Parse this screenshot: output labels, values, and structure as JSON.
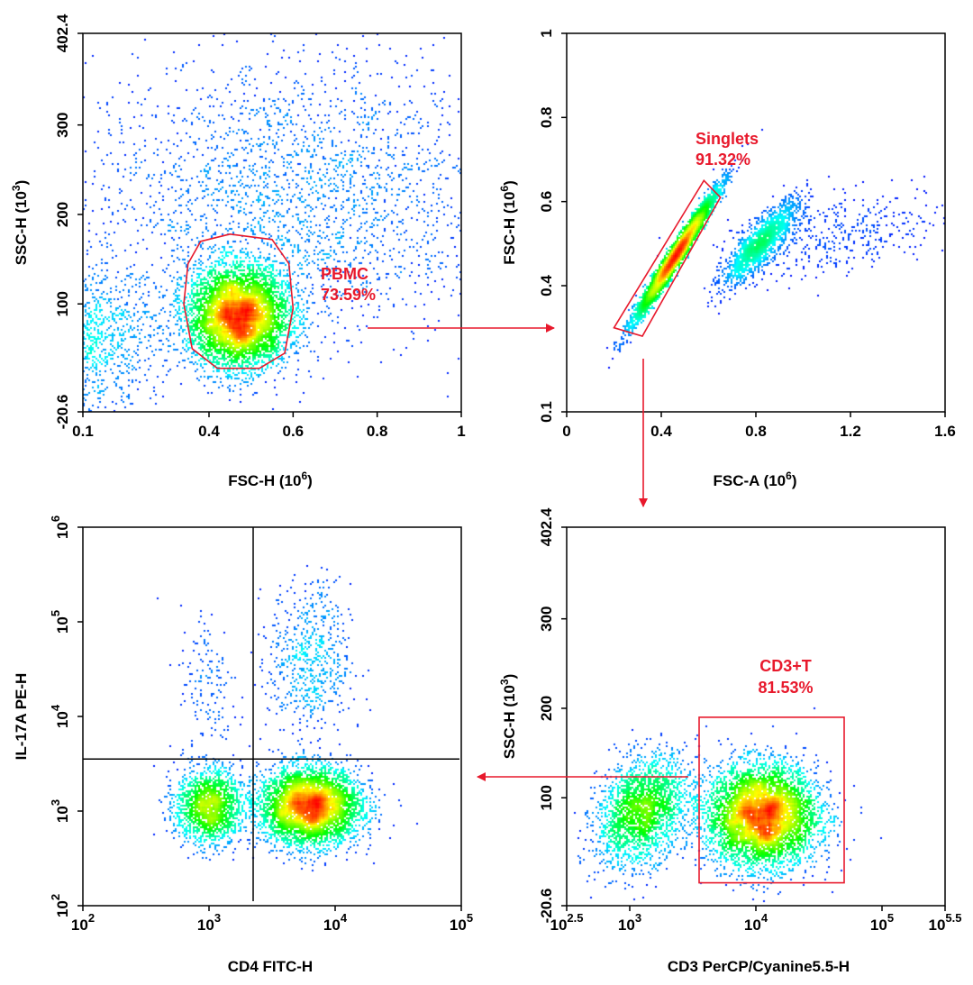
{
  "figure_title": "",
  "colors": {
    "gate": "#e8192c",
    "axis": "#000000",
    "density_low": "#0000ff",
    "density_mid": "#00e070",
    "density_high": "#ff2000"
  },
  "chart_data": [
    {
      "id": "pbmc",
      "type": "scatter",
      "subtype": "flow-cytometry-density",
      "title": "",
      "xlabel": "FSC-H",
      "xlabel_exp": "6",
      "ylabel": "SSC-H",
      "ylabel_exp": "3",
      "xlim": [
        0.1,
        1.0
      ],
      "ylim": [
        -20.6,
        402.4
      ],
      "x_ticks": [
        {
          "value": 0.1,
          "label": "0.1"
        },
        {
          "value": 0.4,
          "label": "0.4"
        },
        {
          "value": 0.6,
          "label": "0.6"
        },
        {
          "value": 0.8,
          "label": "0.8"
        },
        {
          "value": 1.0,
          "label": "1"
        }
      ],
      "y_ticks": [
        {
          "value": -20.6,
          "label": "-20.6"
        },
        {
          "value": 100,
          "label": "100"
        },
        {
          "value": 200,
          "label": "200"
        },
        {
          "value": 300,
          "label": "300"
        },
        {
          "value": 402.4,
          "label": "402.4"
        }
      ],
      "populations": [
        {
          "cx": 0.47,
          "cy": 85,
          "sx": 0.06,
          "sy": 28,
          "n": 5500,
          "rho": 0
        },
        {
          "cx": 0.08,
          "cy": 60,
          "sx": 0.1,
          "sy": 40,
          "n": 1500,
          "rho": 0
        },
        {
          "cx": 0.6,
          "cy": 220,
          "sx": 0.25,
          "sy": 80,
          "n": 2500,
          "rho": 0
        }
      ],
      "gate": {
        "name": "PBMC",
        "percent": "73.59%",
        "shape": "polygon",
        "points": [
          [
            0.38,
            170
          ],
          [
            0.45,
            178
          ],
          [
            0.55,
            172
          ],
          [
            0.59,
            145
          ],
          [
            0.6,
            95
          ],
          [
            0.58,
            45
          ],
          [
            0.52,
            28
          ],
          [
            0.42,
            28
          ],
          [
            0.36,
            50
          ],
          [
            0.34,
            100
          ],
          [
            0.35,
            145
          ]
        ]
      }
    },
    {
      "id": "singlets",
      "type": "scatter",
      "subtype": "flow-cytometry-density",
      "title": "",
      "xlabel": "FSC-A",
      "xlabel_exp": "6",
      "ylabel": "FSC-H",
      "ylabel_exp": "6",
      "xlim": [
        0,
        1.6
      ],
      "ylim": [
        0.1,
        1.0
      ],
      "x_ticks": [
        {
          "value": 0,
          "label": "0"
        },
        {
          "value": 0.4,
          "label": "0.4"
        },
        {
          "value": 0.8,
          "label": "0.8"
        },
        {
          "value": 1.2,
          "label": "1.2"
        },
        {
          "value": 1.6,
          "label": "1.6"
        }
      ],
      "y_ticks": [
        {
          "value": 0.1,
          "label": "0.1"
        },
        {
          "value": 0.4,
          "label": "0.4"
        },
        {
          "value": 0.6,
          "label": "0.6"
        },
        {
          "value": 0.8,
          "label": "0.8"
        },
        {
          "value": 1.0,
          "label": "1"
        }
      ],
      "populations": [
        {
          "cx": 0.46,
          "cy": 0.47,
          "sx": 0.085,
          "sy": 0.075,
          "n": 6000,
          "rho": 0.98
        },
        {
          "cx": 0.82,
          "cy": 0.5,
          "sx": 0.08,
          "sy": 0.05,
          "n": 1600,
          "rho": 0.85
        },
        {
          "cx": 1.15,
          "cy": 0.52,
          "sx": 0.25,
          "sy": 0.05,
          "n": 450,
          "rho": 0.4
        }
      ],
      "gate": {
        "name": "Singlets",
        "percent": "91.32%",
        "shape": "polygon",
        "points": [
          [
            0.2,
            0.3
          ],
          [
            0.32,
            0.28
          ],
          [
            0.65,
            0.61
          ],
          [
            0.58,
            0.65
          ]
        ]
      }
    },
    {
      "id": "cd3",
      "type": "scatter",
      "subtype": "flow-cytometry-density",
      "title": "",
      "xlabel": "CD3 PerCP/Cyanine5.5-H",
      "ylabel": "SSC-H",
      "ylabel_exp": "3",
      "xscale": "log10",
      "xlim": [
        2.5,
        5.5
      ],
      "ylim": [
        -20.6,
        402.4
      ],
      "x_ticks": [
        {
          "value": 2.5,
          "base": "10",
          "exp": "2.5"
        },
        {
          "value": 3,
          "base": "10",
          "exp": "3"
        },
        {
          "value": 4,
          "base": "10",
          "exp": "4"
        },
        {
          "value": 5,
          "base": "10",
          "exp": "5"
        },
        {
          "value": 5.5,
          "base": "10",
          "exp": "5.5"
        }
      ],
      "y_ticks": [
        {
          "value": -20.6,
          "label": "-20.6"
        },
        {
          "value": 100,
          "label": "100"
        },
        {
          "value": 200,
          "label": "200"
        },
        {
          "value": 300,
          "label": "300"
        },
        {
          "value": 402.4,
          "label": "402.4"
        }
      ],
      "populations": [
        {
          "cx": 4.05,
          "cy": 80,
          "sx": 0.22,
          "sy": 28,
          "n": 6000,
          "rho": 0
        },
        {
          "cx": 3.1,
          "cy": 85,
          "sx": 0.18,
          "sy": 30,
          "n": 2200,
          "rho": 0.3
        }
      ],
      "gate": {
        "name": "CD3+T",
        "percent": "81.53%",
        "shape": "rectangle",
        "x": [
          3.55,
          4.7
        ],
        "y": [
          5,
          190
        ]
      }
    },
    {
      "id": "il17",
      "type": "scatter",
      "subtype": "flow-cytometry-density",
      "title": "",
      "xlabel": "CD4 FITC-H",
      "ylabel": "IL-17A PE-H",
      "xscale": "log10",
      "yscale": "log10",
      "xlim": [
        2,
        5
      ],
      "ylim": [
        2,
        6
      ],
      "x_ticks": [
        {
          "value": 2,
          "base": "10",
          "exp": "2"
        },
        {
          "value": 3,
          "base": "10",
          "exp": "3"
        },
        {
          "value": 4,
          "base": "10",
          "exp": "4"
        },
        {
          "value": 5,
          "base": "10",
          "exp": "5"
        }
      ],
      "y_ticks": [
        {
          "value": 2,
          "base": "10",
          "exp": "2"
        },
        {
          "value": 3,
          "base": "10",
          "exp": "3"
        },
        {
          "value": 4,
          "base": "10",
          "exp": "4"
        },
        {
          "value": 5,
          "base": "10",
          "exp": "5"
        },
        {
          "value": 6,
          "base": "10",
          "exp": "6"
        }
      ],
      "populations": [
        {
          "cx": 3.0,
          "cy": 3.05,
          "sx": 0.13,
          "sy": 0.2,
          "n": 1700,
          "rho": 0
        },
        {
          "cx": 3.8,
          "cy": 3.05,
          "sx": 0.2,
          "sy": 0.2,
          "n": 4500,
          "rho": 0
        },
        {
          "cx": 3.8,
          "cy": 4.6,
          "sx": 0.16,
          "sy": 0.4,
          "n": 600,
          "rho": 0
        },
        {
          "cx": 3.0,
          "cy": 4.3,
          "sx": 0.12,
          "sy": 0.45,
          "n": 150,
          "rho": 0
        }
      ],
      "quadrant": {
        "x": 3.35,
        "y": 3.55
      }
    }
  ],
  "arrows": [
    {
      "from": "pbmc",
      "to": "singlets"
    },
    {
      "from": "singlets",
      "to": "cd3"
    },
    {
      "from": "cd3",
      "to": "il17"
    }
  ]
}
